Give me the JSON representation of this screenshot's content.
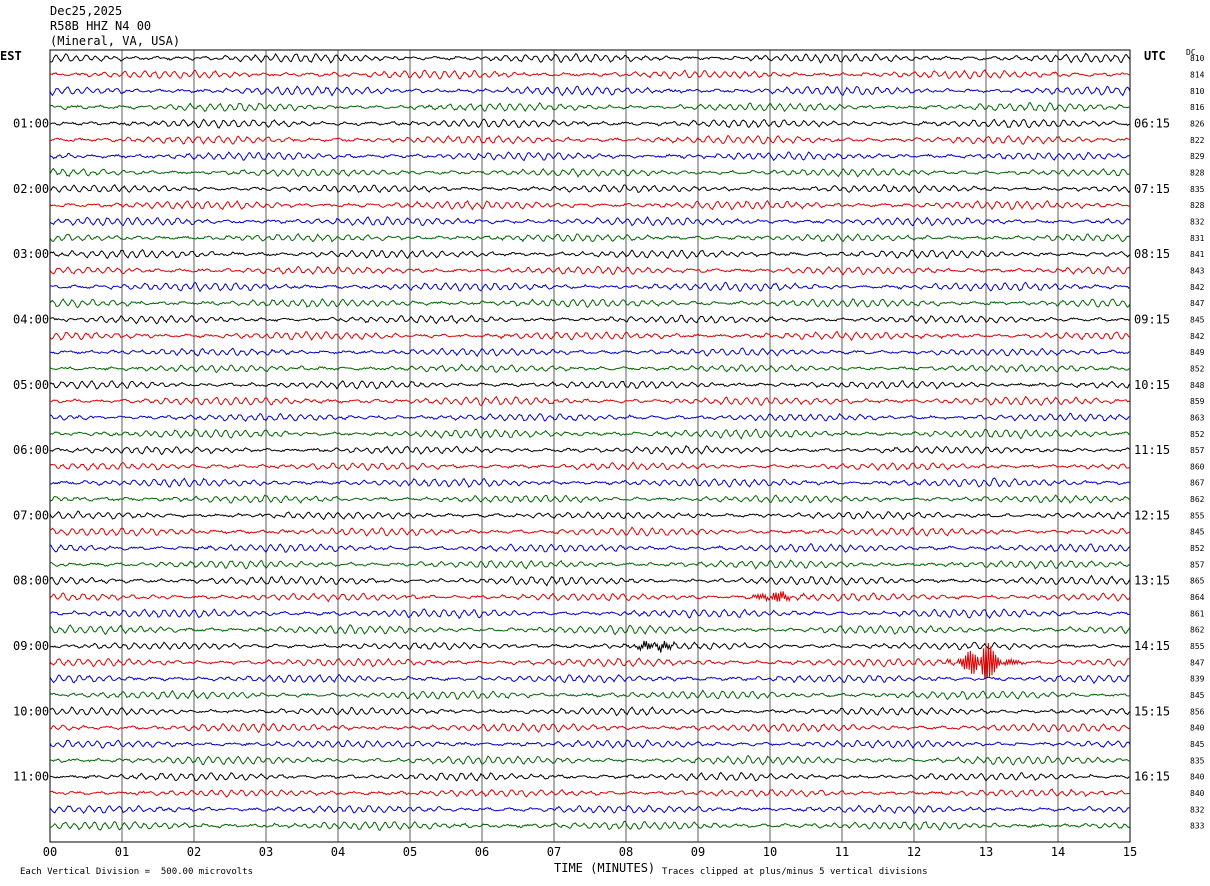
{
  "header": {
    "date": "Dec25,2025",
    "station": "R58B HHZ N4 00",
    "location": "(Mineral, VA, USA)"
  },
  "left_timezone": "EST",
  "right_timezone": "UTC",
  "dc_header": "DC",
  "colors": {
    "trace_cycle": [
      "#000000",
      "#dd0000",
      "#0000cc",
      "#006600"
    ],
    "grid": "#000000",
    "background": "#ffffff"
  },
  "chart_data": {
    "type": "line",
    "title": "R58B HHZ N4 00 (Mineral, VA, USA)",
    "xlabel": "TIME (MINUTES)",
    "xlim": [
      0,
      15
    ],
    "x_ticks": [
      "00",
      "01",
      "02",
      "03",
      "04",
      "05",
      "06",
      "07",
      "08",
      "09",
      "10",
      "11",
      "12",
      "13",
      "14",
      "15"
    ],
    "rows": 48,
    "row_minutes": 15,
    "left_hour_labels": [
      "01:00",
      "02:00",
      "03:00",
      "04:00",
      "05:00",
      "06:00",
      "07:00",
      "08:00",
      "09:00",
      "10:00",
      "11:00"
    ],
    "right_hour_labels": [
      "06:15",
      "07:15",
      "08:15",
      "09:15",
      "10:15",
      "11:15",
      "12:15",
      "13:15",
      "14:15",
      "15:15",
      "16:15"
    ],
    "dc_offsets": [
      810,
      814,
      810,
      816,
      826,
      822,
      829,
      828,
      835,
      828,
      832,
      831,
      841,
      843,
      842,
      847,
      845,
      842,
      849,
      852,
      848,
      859,
      863,
      852,
      857,
      860,
      867,
      862,
      855,
      845,
      852,
      857,
      865,
      864,
      861,
      862,
      855,
      847,
      839,
      845,
      856,
      840,
      845,
      835,
      840,
      840,
      832,
      833
    ],
    "events": [
      {
        "row": 37,
        "minute": 12.95,
        "description": "large amplitude burst (clipped)"
      },
      {
        "row": 33,
        "minute": 10.05,
        "description": "moderate burst"
      },
      {
        "row": 36,
        "minute": 8.4,
        "description": "small burst"
      }
    ],
    "scale_note": "Each Vertical Division =  500.00 microvolts",
    "clip_note": "Traces clipped at plus/minus 5 vertical divisions"
  }
}
